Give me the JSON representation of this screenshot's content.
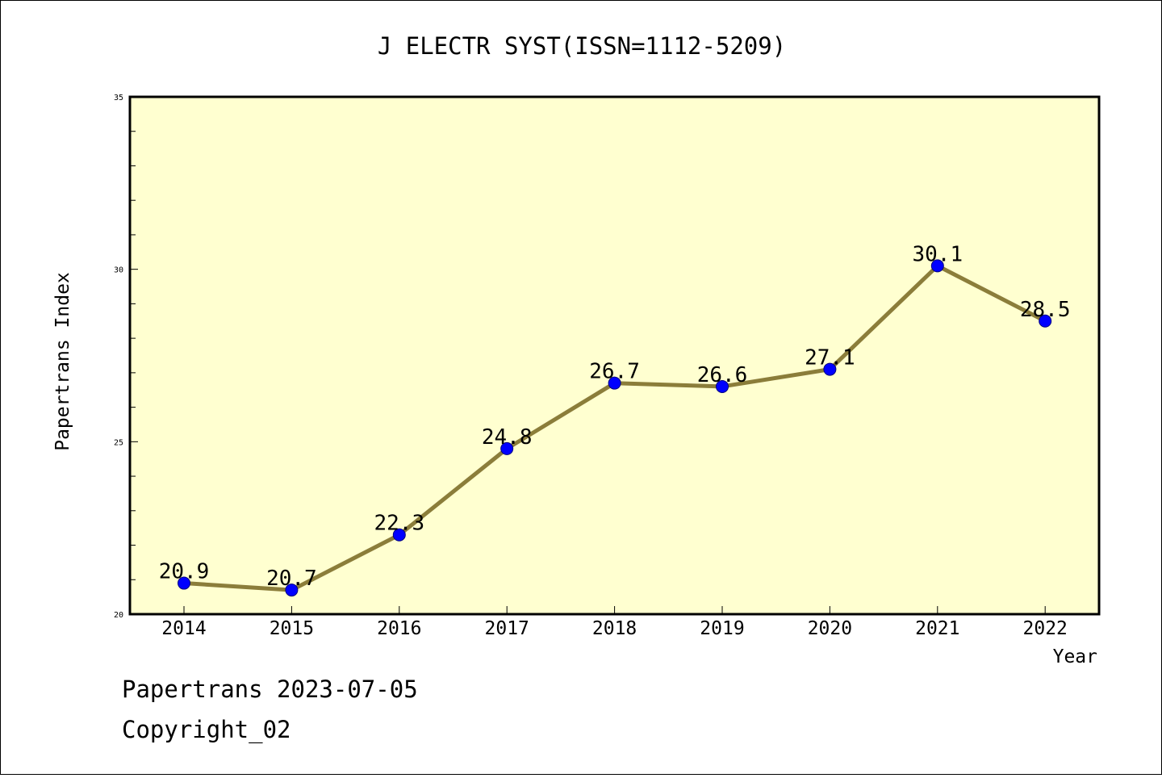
{
  "chart_data": {
    "type": "line",
    "title": "J ELECTR SYST(ISSN=1112-5209)",
    "xlabel": "Year",
    "ylabel": "Papertrans Index",
    "categories": [
      "2014",
      "2015",
      "2016",
      "2017",
      "2018",
      "2019",
      "2020",
      "2021",
      "2022"
    ],
    "series": [
      {
        "values": [
          20.9,
          20.7,
          22.3,
          24.8,
          26.7,
          26.6,
          27.1,
          30.1,
          28.5
        ]
      }
    ],
    "data_labels": [
      "20.9",
      "20.7",
      "22.3",
      "24.8",
      "26.7",
      "26.6",
      "27.1",
      "30.1",
      "28.5"
    ],
    "ylim": [
      20,
      35
    ],
    "yticks": [
      20,
      25,
      30,
      35
    ],
    "grid": false,
    "colors": {
      "line": "#8b7d3a",
      "marker": "#0000ff",
      "plot_background": "#ffffd0"
    }
  },
  "footer": {
    "line1": "Papertrans 2023-07-05",
    "line2": "Copyright_02"
  }
}
